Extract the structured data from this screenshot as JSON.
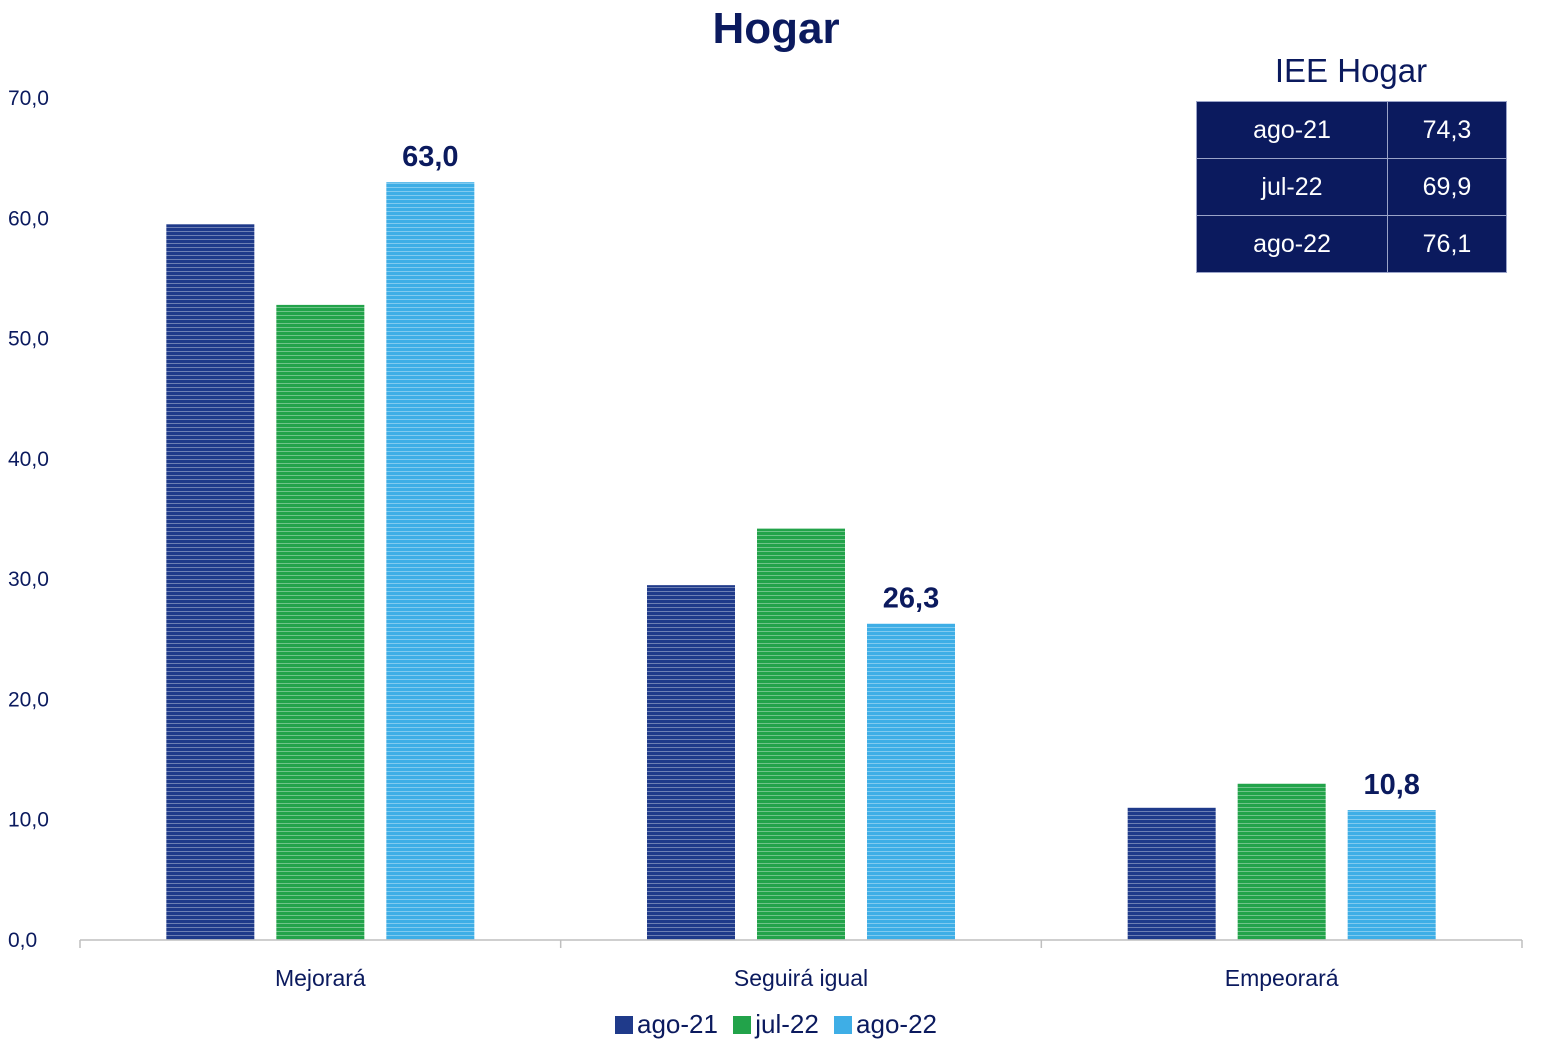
{
  "chart_data": {
    "type": "bar",
    "title": "Hogar",
    "categories": [
      "Mejorará",
      "Seguirá igual",
      "Empeorará"
    ],
    "series": [
      {
        "name": "ago-21",
        "values": [
          59.5,
          29.5,
          11.0
        ],
        "color": "#1f3a8a"
      },
      {
        "name": "jul-22",
        "values": [
          52.8,
          34.2,
          13.0
        ],
        "color": "#22a34a"
      },
      {
        "name": "ago-22",
        "values": [
          63.0,
          26.3,
          10.8
        ],
        "color": "#3eaee6"
      }
    ],
    "data_labels_series": "ago-22",
    "data_labels": [
      "63,0",
      "26,3",
      "10,8"
    ],
    "ylim": [
      0,
      70
    ],
    "yticks": [
      "0,0",
      "10,0",
      "20,0",
      "30,0",
      "40,0",
      "50,0",
      "60,0",
      "70,0"
    ],
    "grid": false,
    "legend_position": "bottom"
  },
  "iee_table": {
    "title": "IEE Hogar",
    "rows": [
      {
        "period": "ago-21",
        "value": "74,3"
      },
      {
        "period": "jul-22",
        "value": "69,9"
      },
      {
        "period": "ago-22",
        "value": "76,1"
      }
    ]
  }
}
